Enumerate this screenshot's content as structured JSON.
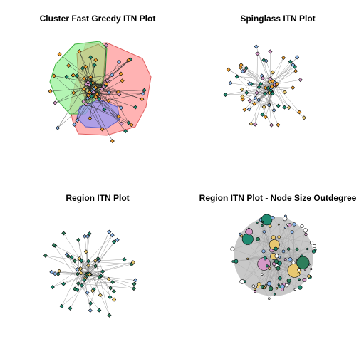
{
  "panels": [
    {
      "id": "fastgreedy",
      "title": "Cluster Fast Greedy ITN Plot"
    },
    {
      "id": "spinglass",
      "title": "Spinglass ITN Plot"
    },
    {
      "id": "region",
      "title": "Region ITN Plot"
    },
    {
      "id": "outdegree",
      "title": "Region ITN Plot - Node Size Outdegree"
    }
  ],
  "colors": {
    "node_orange": "#f0a030",
    "node_blue": "#8ab4e8",
    "node_teal": "#1f8a70",
    "node_pink": "#d59ac8",
    "node_yellow": "#e8c870",
    "node_darkgreen": "#2e7d5b",
    "edge": "#555555",
    "edge_dense": "#aaaaaa",
    "hull_red": "#ff9a9a",
    "hull_green": "#9af29a",
    "hull_purple": "#9a9af2",
    "hull_olive": "#c8c88a"
  }
}
